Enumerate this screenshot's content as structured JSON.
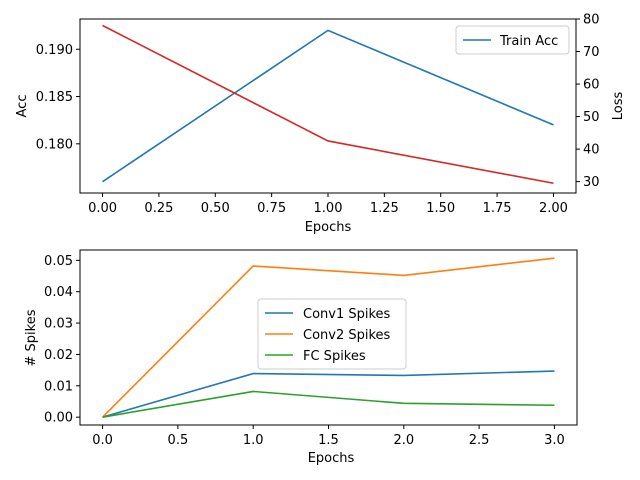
{
  "chart_data": [
    {
      "type": "line",
      "xlabel": "Epochs",
      "ylabel": "Acc",
      "y2label": "Loss",
      "xlim": [
        -0.1,
        2.1
      ],
      "ylim": [
        0.1748,
        0.1932
      ],
      "y2lim": [
        26.5,
        80.0
      ],
      "x_ticks": [
        "0.00",
        "0.25",
        "0.50",
        "0.75",
        "1.00",
        "1.25",
        "1.50",
        "1.75",
        "2.00"
      ],
      "y_ticks": [
        "0.180",
        "0.185",
        "0.190"
      ],
      "y2_ticks": [
        "30",
        "40",
        "50",
        "60",
        "70",
        "80"
      ],
      "series": [
        {
          "name": "Train Acc",
          "axis": "left",
          "color": "#1f77b4",
          "x": [
            0,
            1,
            2
          ],
          "y": [
            0.176,
            0.192,
            0.182
          ]
        },
        {
          "axis": "right",
          "color": "#d62728",
          "x": [
            0,
            1,
            2
          ],
          "y": [
            78.0,
            42.5,
            29.5
          ]
        }
      ],
      "legend": {
        "position": "top-right",
        "entries": [
          "Train Acc"
        ]
      },
      "grid": false
    },
    {
      "type": "line",
      "xlabel": "Epochs",
      "ylabel": "# Spikes",
      "xlim": [
        -0.15,
        3.15
      ],
      "ylim": [
        -0.0025,
        0.0533
      ],
      "x_ticks": [
        "0.0",
        "0.5",
        "1.0",
        "1.5",
        "2.0",
        "2.5",
        "3.0"
      ],
      "y_ticks": [
        "0.00",
        "0.01",
        "0.02",
        "0.03",
        "0.04",
        "0.05"
      ],
      "series": [
        {
          "name": "Conv1 Spikes",
          "color": "#1f77b4",
          "x": [
            0,
            1,
            2,
            3
          ],
          "y": [
            0.0,
            0.0139,
            0.0133,
            0.0147
          ]
        },
        {
          "name": "Conv2 Spikes",
          "color": "#ff7f0e",
          "x": [
            0,
            1,
            2,
            3
          ],
          "y": [
            0.0,
            0.0482,
            0.0452,
            0.0507
          ]
        },
        {
          "name": "FC Spikes",
          "color": "#2ca02c",
          "x": [
            0,
            1,
            2,
            3
          ],
          "y": [
            0.0,
            0.0082,
            0.0044,
            0.0038
          ]
        }
      ],
      "legend": {
        "position": "center",
        "entries": [
          "Conv1 Spikes",
          "Conv2 Spikes",
          "FC Spikes"
        ]
      },
      "grid": false
    }
  ]
}
